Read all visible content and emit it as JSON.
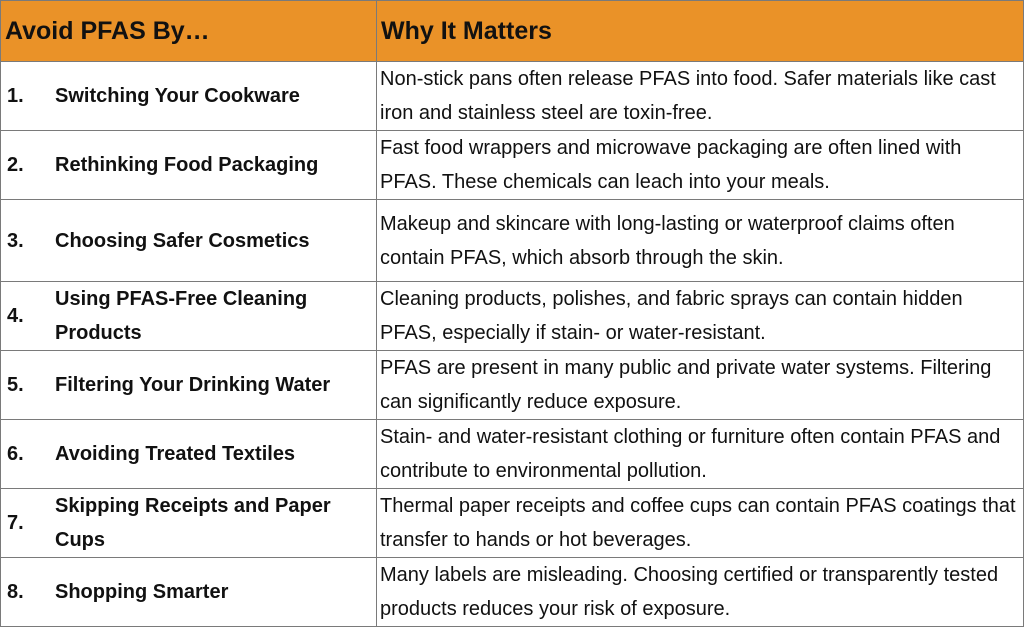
{
  "header": {
    "col1": "Avoid PFAS By…",
    "col2": "Why It Matters"
  },
  "rows": [
    {
      "num": "1.",
      "title": "Switching Your Cookware",
      "desc": "Non-stick pans often release PFAS into food. Safer materials like cast iron and stainless steel are toxin-free."
    },
    {
      "num": "2.",
      "title": "Rethinking Food Packaging",
      "desc": "Fast food wrappers and microwave packaging are often lined with PFAS. These chemicals can leach into your meals."
    },
    {
      "num": "3.",
      "title": "Choosing Safer Cosmetics",
      "desc": "Makeup and skincare with long-lasting or waterproof claims often contain PFAS, which absorb through the skin."
    },
    {
      "num": "4.",
      "title": "Using PFAS-Free Cleaning Products",
      "desc": "Cleaning products, polishes, and fabric sprays can contain hidden PFAS, especially if stain- or water-resistant."
    },
    {
      "num": "5.",
      "title": "Filtering Your Drinking Water",
      "desc": "PFAS are present in many public and private water systems. Filtering can significantly reduce exposure."
    },
    {
      "num": "6.",
      "title": "Avoiding Treated Textiles",
      "desc": "Stain- and water-resistant clothing or furniture often contain PFAS and contribute to environmental pollution."
    },
    {
      "num": "7.",
      "title": "Skipping Receipts and Paper Cups",
      "desc": "Thermal paper receipts and coffee cups can contain PFAS coatings that transfer to hands or hot beverages."
    },
    {
      "num": "8.",
      "title": "Shopping Smarter",
      "desc": "Many labels are misleading. Choosing certified or transparently tested products reduces your risk of exposure."
    }
  ],
  "colors": {
    "header_bg": "#ea9228",
    "border": "#7a7a7a"
  }
}
